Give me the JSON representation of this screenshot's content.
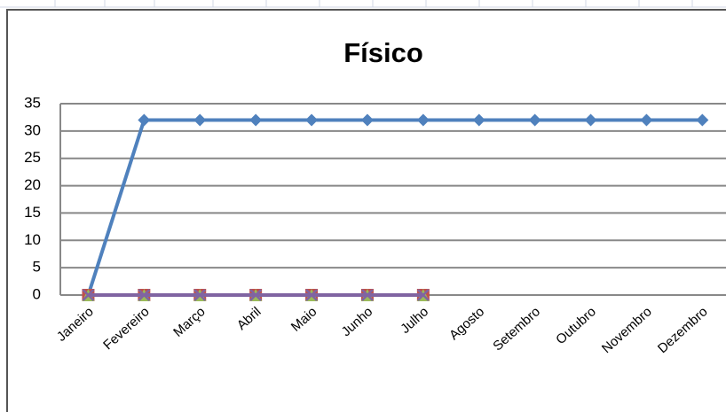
{
  "chart_data": {
    "type": "line",
    "title": "Físico",
    "categories": [
      "Janeiro",
      "Fevereiro",
      "Março",
      "Abril",
      "Maio",
      "Junho",
      "Julho",
      "Agosto",
      "Setembro",
      "Outubro",
      "Novembro",
      "Dezembro"
    ],
    "series": [
      {
        "color": "#4f81bd",
        "marker": "diamond",
        "values": [
          0,
          32,
          32,
          32,
          32,
          32,
          32,
          32,
          32,
          32,
          32,
          32
        ]
      },
      {
        "color": "#c0504d",
        "marker": "square",
        "values": [
          0,
          0,
          0,
          0,
          0,
          0,
          0,
          null,
          null,
          null,
          null,
          null
        ]
      },
      {
        "color": "#9bbb59",
        "marker": "triangle",
        "values": [
          0,
          0,
          0,
          0,
          0,
          0,
          0,
          null,
          null,
          null,
          null,
          null
        ]
      },
      {
        "color": "#8064a2",
        "marker": "x",
        "values": [
          0,
          0,
          0,
          0,
          0,
          0,
          0,
          null,
          null,
          null,
          null,
          null
        ]
      }
    ],
    "ylim": [
      0,
      35
    ],
    "yticks": [
      0,
      5,
      10,
      15,
      20,
      25,
      30,
      35
    ],
    "grid": true
  }
}
